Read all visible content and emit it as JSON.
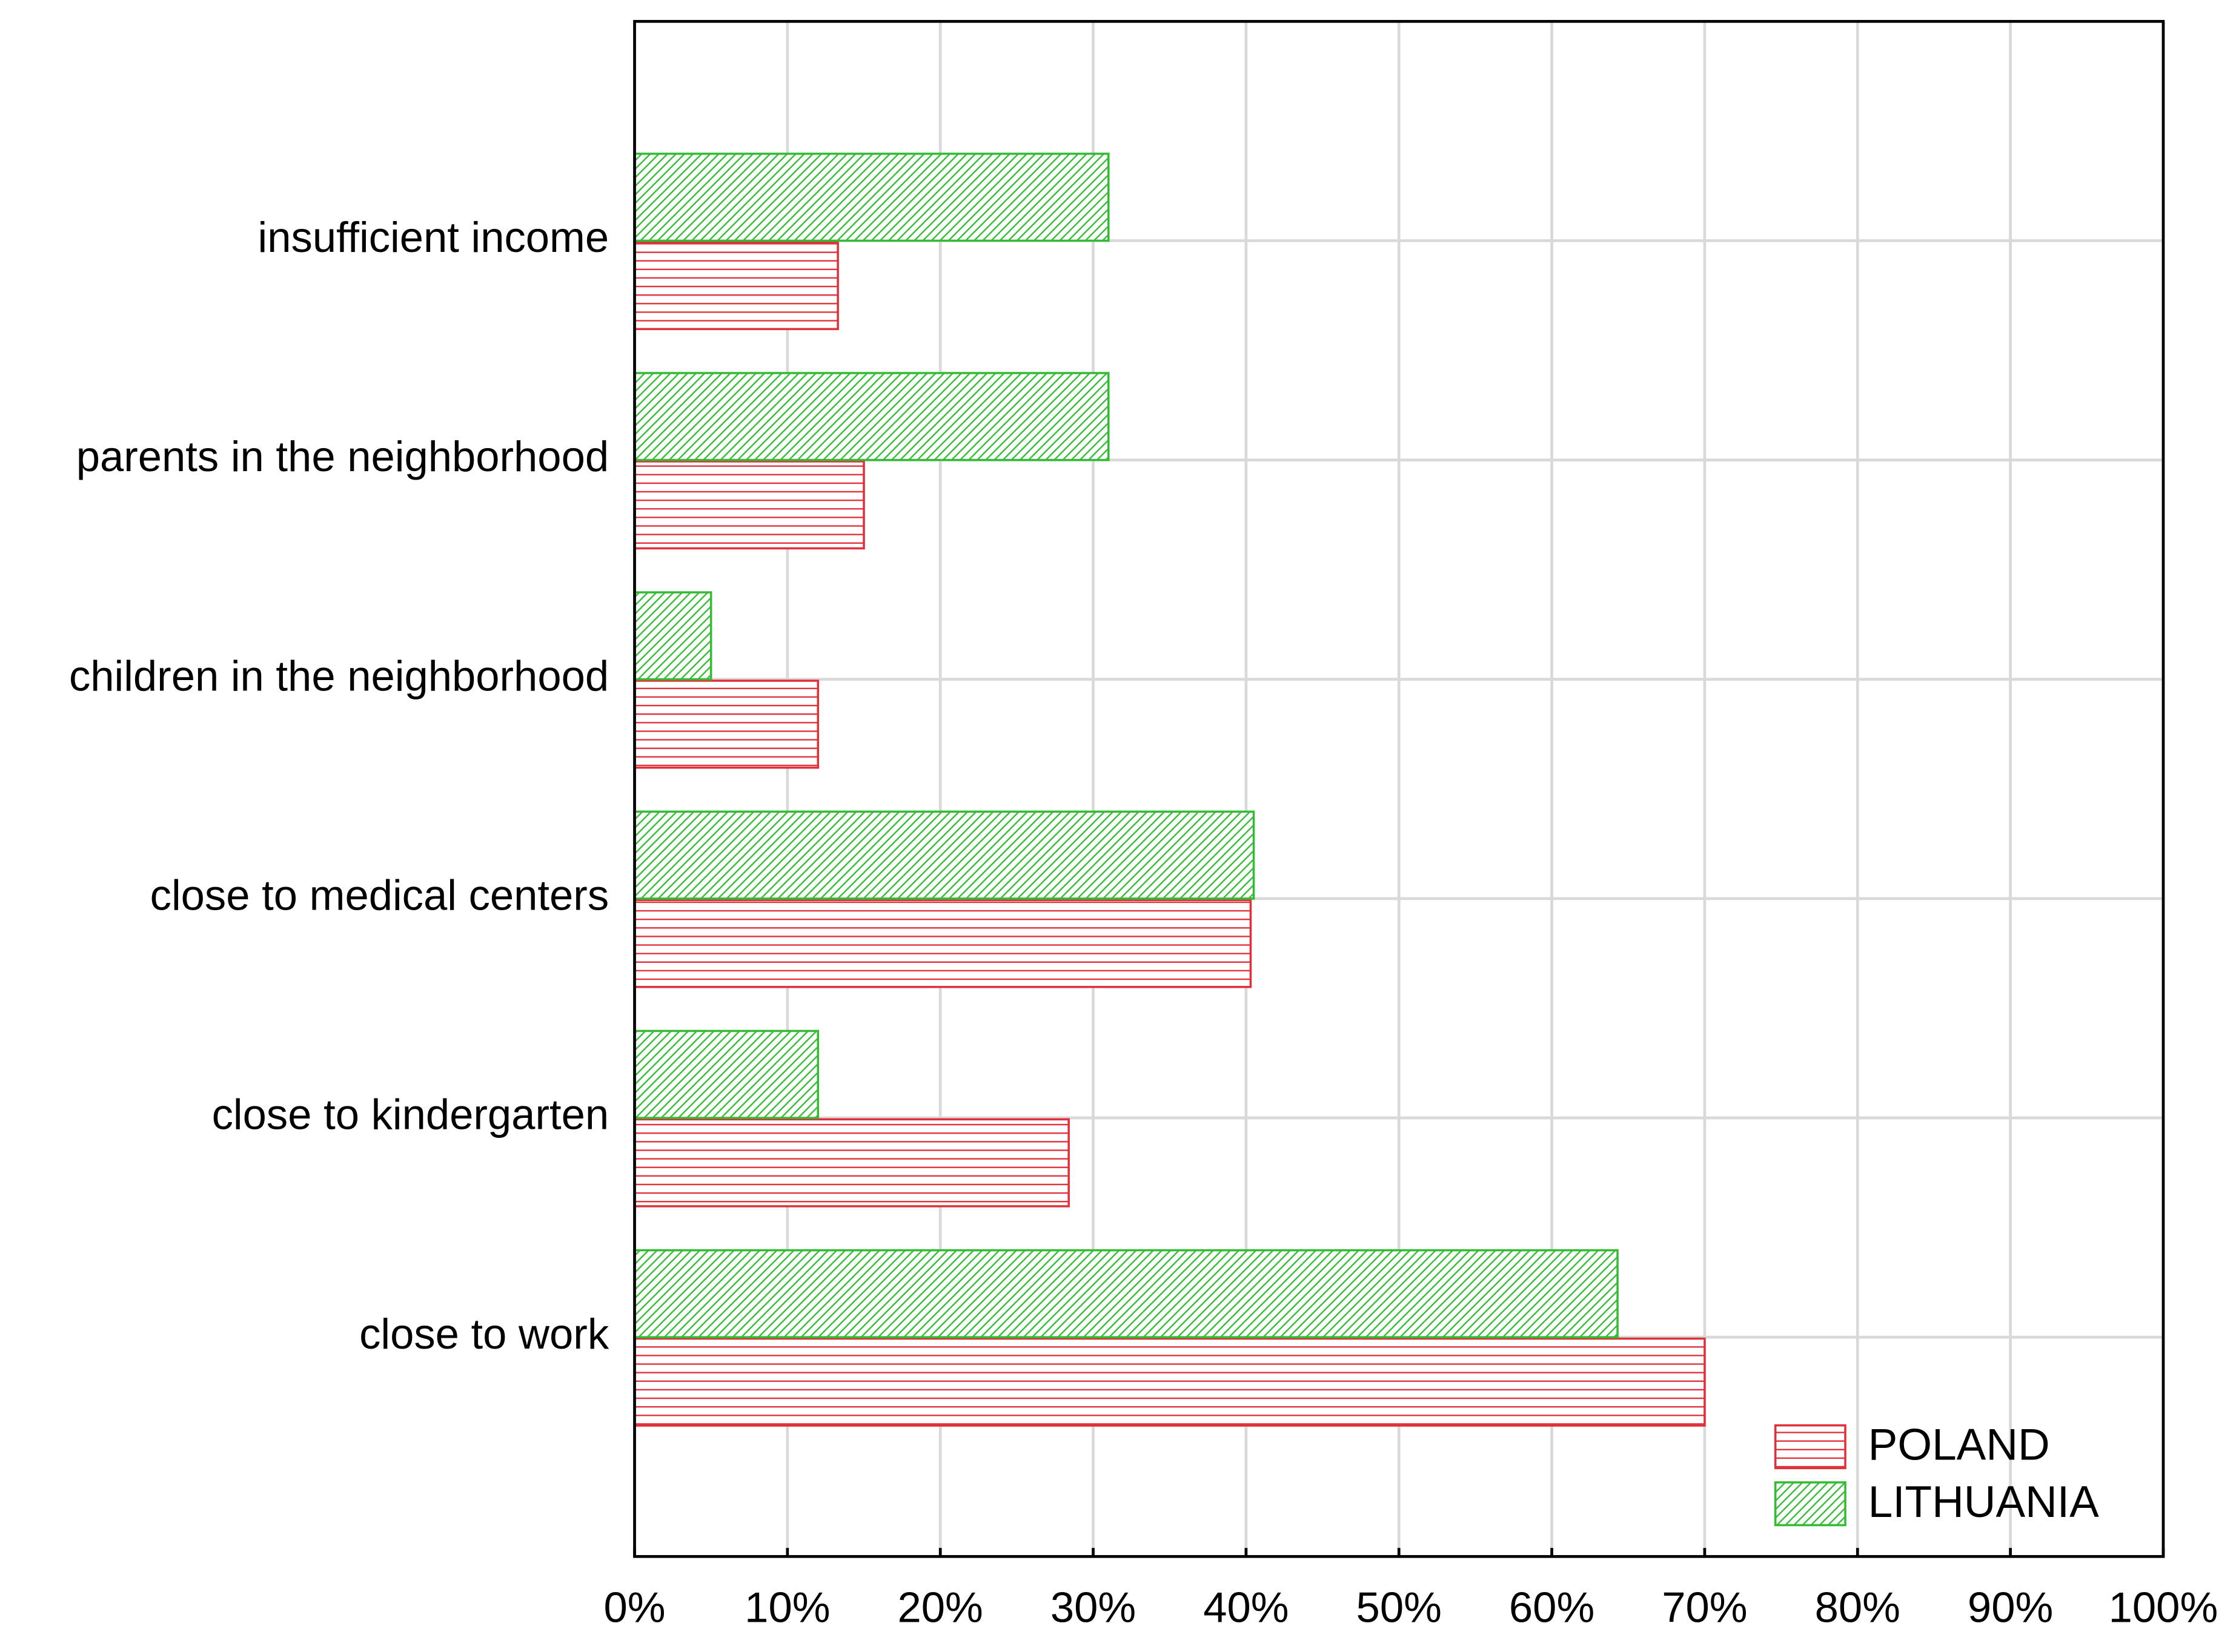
{
  "chart_data": {
    "type": "bar",
    "orientation": "horizontal",
    "categories": [
      "insufficient income",
      "parents in the neighborhood",
      "children in the neighborhood",
      "close to medical centers",
      "close to kindergarten",
      "close to work"
    ],
    "series": [
      {
        "name": "POLAND",
        "color": "#e0303a",
        "values": [
          13.3,
          15,
          12,
          40.3,
          28.4,
          70
        ]
      },
      {
        "name": "LITHUANIA",
        "color": "#33bb33",
        "values": [
          31,
          31,
          5,
          40.5,
          12,
          64.3
        ]
      }
    ],
    "xlim": [
      0,
      100
    ],
    "xticks": [
      {
        "value": 0,
        "label": "0%"
      },
      {
        "value": 10,
        "label": "10%"
      },
      {
        "value": 20,
        "label": "20%"
      },
      {
        "value": 30,
        "label": "30%"
      },
      {
        "value": 40,
        "label": "40%"
      },
      {
        "value": 50,
        "label": "50%"
      },
      {
        "value": 60,
        "label": "60%"
      },
      {
        "value": 70,
        "label": "70%"
      },
      {
        "value": 80,
        "label": "80%"
      },
      {
        "value": 90,
        "label": "90%"
      },
      {
        "value": 100,
        "label": "100%"
      }
    ],
    "grid": true,
    "legend": "lower right"
  }
}
